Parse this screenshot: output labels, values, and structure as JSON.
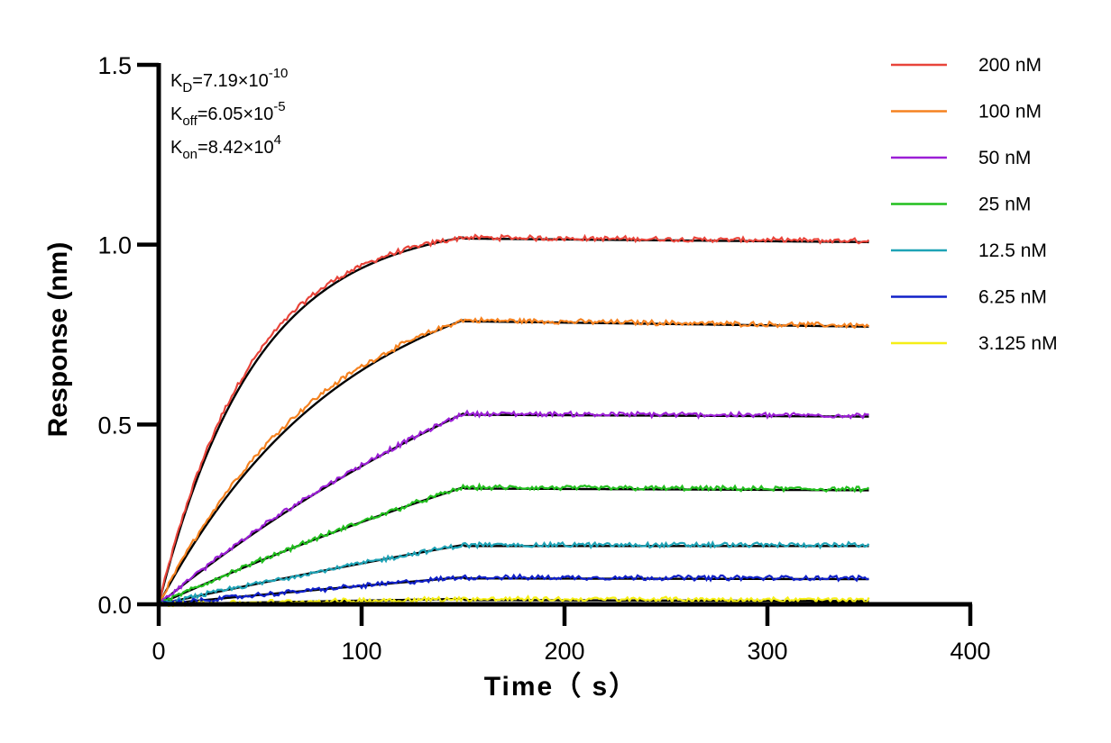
{
  "chart_data": {
    "type": "line",
    "xlabel": "Time（ s）",
    "ylabel": "Response (nm)",
    "xlim": [
      0,
      400
    ],
    "ylim": [
      0,
      1.5
    ],
    "xticks": [
      0,
      100,
      200,
      300,
      400
    ],
    "yticks": [
      0.0,
      0.5,
      1.0,
      1.5
    ],
    "xtick_labels": [
      "0",
      "100",
      "200",
      "300",
      "400"
    ],
    "ytick_labels": [
      "0.0",
      "0.5",
      "1.0",
      "1.5"
    ],
    "grid": false,
    "legend_position": "right",
    "association_end": 150,
    "time_end": 350,
    "annotations": [
      {
        "base": "K",
        "sub": "D",
        "text": "=7.19×10",
        "sup": "-10"
      },
      {
        "base": "K",
        "sub": "off",
        "text": "=6.05×10",
        "sup": "-5"
      },
      {
        "base": "K",
        "sub": "on",
        "text": "=8.42×10",
        "sup": "4"
      }
    ],
    "fit_color": "#000000",
    "series": [
      {
        "name": "200 nM",
        "color": "#e8443a",
        "plateau": 1.02,
        "end_value": 1.01
      },
      {
        "name": "100 nM",
        "color": "#f58220",
        "plateau": 0.79,
        "end_value": 0.775
      },
      {
        "name": "50 nM",
        "color": "#9b1fd6",
        "plateau": 0.53,
        "end_value": 0.525
      },
      {
        "name": "25 nM",
        "color": "#22bf1e",
        "plateau": 0.325,
        "end_value": 0.32
      },
      {
        "name": "12.5 nM",
        "color": "#1fa3b6",
        "plateau": 0.165,
        "end_value": 0.165
      },
      {
        "name": "6.25 nM",
        "color": "#1020c8",
        "plateau": 0.075,
        "end_value": 0.073
      },
      {
        "name": "3.125 nM",
        "color": "#f5ee16",
        "plateau": 0.015,
        "end_value": 0.012
      }
    ]
  }
}
